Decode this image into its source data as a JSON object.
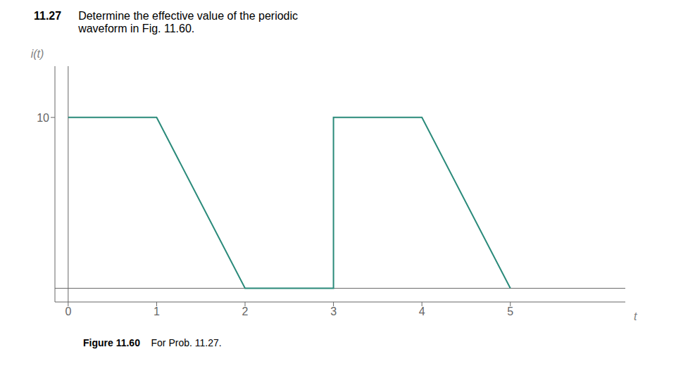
{
  "chart_data": {
    "type": "line",
    "title": "11.27",
    "subtitle": "Determine the effective value of the periodic\nwaveform in Fig. 11.60.",
    "annotations": [
      "Figure 11.60",
      "    For Prob. 11.27."
    ],
    "x": [
      0,
      1,
      2,
      3,
      3,
      4,
      5
    ],
    "values": [
      10,
      10,
      0,
      0,
      10,
      10,
      0
    ],
    "color": "#2a8a7a",
    "x_label": "t",
    "y_label": "i(t)",
    "xlim": [
      -0.15,
      6.3
    ],
    "ylim": [
      -0.8,
      13
    ],
    "xticks": [
      0,
      1,
      2,
      3,
      4,
      5
    ],
    "yticks": [
      10
    ],
    "grid": false
  }
}
